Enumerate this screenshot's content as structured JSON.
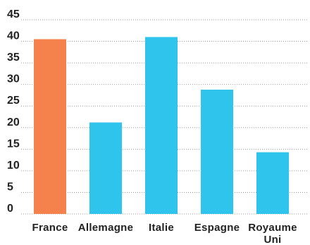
{
  "chart_data": {
    "type": "bar",
    "title": "",
    "xlabel": "",
    "ylabel": "",
    "categories": [
      [
        "France"
      ],
      [
        "Allemagne"
      ],
      [
        "Italie"
      ],
      [
        "Espagne"
      ],
      [
        "Royaume",
        "Uni"
      ]
    ],
    "values": [
      40.5,
      21.2,
      41.0,
      28.8,
      14.3
    ],
    "ylim": [
      0,
      45
    ],
    "yticks": [
      "0",
      "5",
      "10",
      "15",
      "20",
      "25",
      "30",
      "35",
      "40",
      "45"
    ],
    "grid": true,
    "colors": {
      "highlight": "#F5814C",
      "default": "#2EC4EC"
    },
    "highlight_index": 0
  }
}
